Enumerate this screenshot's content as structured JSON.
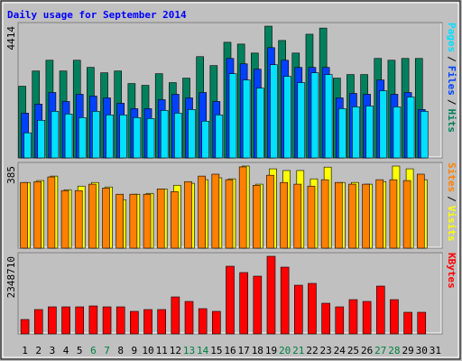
{
  "title": "Daily usage for September 2014",
  "chart_data": [
    {
      "type": "bar",
      "legend_separator": "/",
      "ylim": [
        0,
        4414
      ],
      "yticks": [
        4414
      ],
      "series": [
        {
          "name": "Hits",
          "color": "#00805c",
          "values": [
            2402,
            2913,
            3273,
            2913,
            3273,
            3033,
            2853,
            2913,
            2492,
            2432,
            2823,
            2523,
            2673,
            3393,
            3093,
            3874,
            3814,
            3513,
            4414,
            3934,
            3513,
            4144,
            4350,
            2673,
            2793,
            2793,
            3333,
            3273,
            3333,
            3333,
            0
          ]
        },
        {
          "name": "Files",
          "color": "#0040ff",
          "values": [
            1501,
            1801,
            2192,
            1891,
            2132,
            2072,
            2012,
            1831,
            1651,
            1651,
            1951,
            2132,
            2012,
            2192,
            1891,
            3333,
            3153,
            2973,
            3694,
            3273,
            3033,
            3033,
            3033,
            2012,
            2162,
            2132,
            2612,
            2132,
            2192,
            1621,
            0
          ]
        },
        {
          "name": "Pages",
          "color": "#00e0ff",
          "values": [
            841,
            1261,
            1561,
            1471,
            1351,
            1561,
            1441,
            1441,
            1351,
            1321,
            1591,
            1501,
            1621,
            1231,
            1441,
            2823,
            2612,
            2342,
            3123,
            2733,
            2523,
            2853,
            2793,
            1651,
            1711,
            1741,
            2252,
            1711,
            2042,
            1561,
            0
          ]
        }
      ]
    },
    {
      "type": "bar",
      "legend_separator": "/",
      "ylim": [
        0,
        385
      ],
      "yticks": [
        385
      ],
      "series": [
        {
          "name": "Visits",
          "color": "#ffff00",
          "values": [
            308,
            317,
            338,
            274,
            291,
            308,
            287,
            227,
            253,
            257,
            278,
            295,
            304,
            321,
            330,
            325,
            385,
            300,
            372,
            364,
            364,
            325,
            380,
            308,
            308,
            300,
            312,
            385,
            372,
            321,
            0
          ]
        },
        {
          "name": "Sites",
          "color": "#ff8000",
          "values": [
            308,
            312,
            334,
            270,
            270,
            300,
            282,
            253,
            253,
            253,
            278,
            265,
            312,
            338,
            347,
            321,
            381,
            295,
            342,
            308,
            300,
            291,
            321,
            308,
            300,
            300,
            321,
            321,
            317,
            347,
            0
          ]
        }
      ]
    },
    {
      "type": "bar",
      "ylim": [
        0,
        2348710
      ],
      "yticks": [
        2348710
      ],
      "categories": [
        "1",
        "2",
        "3",
        "4",
        "5",
        "6",
        "7",
        "8",
        "9",
        "10",
        "11",
        "12",
        "13",
        "14",
        "15",
        "16",
        "17",
        "18",
        "19",
        "20",
        "21",
        "22",
        "23",
        "24",
        "25",
        "26",
        "27",
        "28",
        "29",
        "30",
        "31"
      ],
      "label_colors": [
        "#000000",
        "#000000",
        "#000000",
        "#000000",
        "#000000",
        "#008040",
        "#008040",
        "#000000",
        "#000000",
        "#000000",
        "#000000",
        "#000000",
        "#008040",
        "#008040",
        "#000000",
        "#000000",
        "#000000",
        "#000000",
        "#000000",
        "#008040",
        "#008040",
        "#000000",
        "#000000",
        "#000000",
        "#000000",
        "#000000",
        "#008040",
        "#008040",
        "#000000",
        "#000000",
        "#000000"
      ],
      "series": [
        {
          "name": "KBytes",
          "color": "#ff0000",
          "values": [
            436960,
            737370,
            819300,
            819300,
            819300,
            846610,
            819300,
            819300,
            682750,
            737370,
            737370,
            1119710,
            983160,
            764680,
            682750,
            2048250,
            1857080,
            1747840,
            2348710,
            2020940,
            1474740,
            1529360,
            928540,
            819300,
            1037780,
            983160,
            1447430,
            1037780,
            655440,
            655440,
            0
          ]
        }
      ]
    }
  ]
}
